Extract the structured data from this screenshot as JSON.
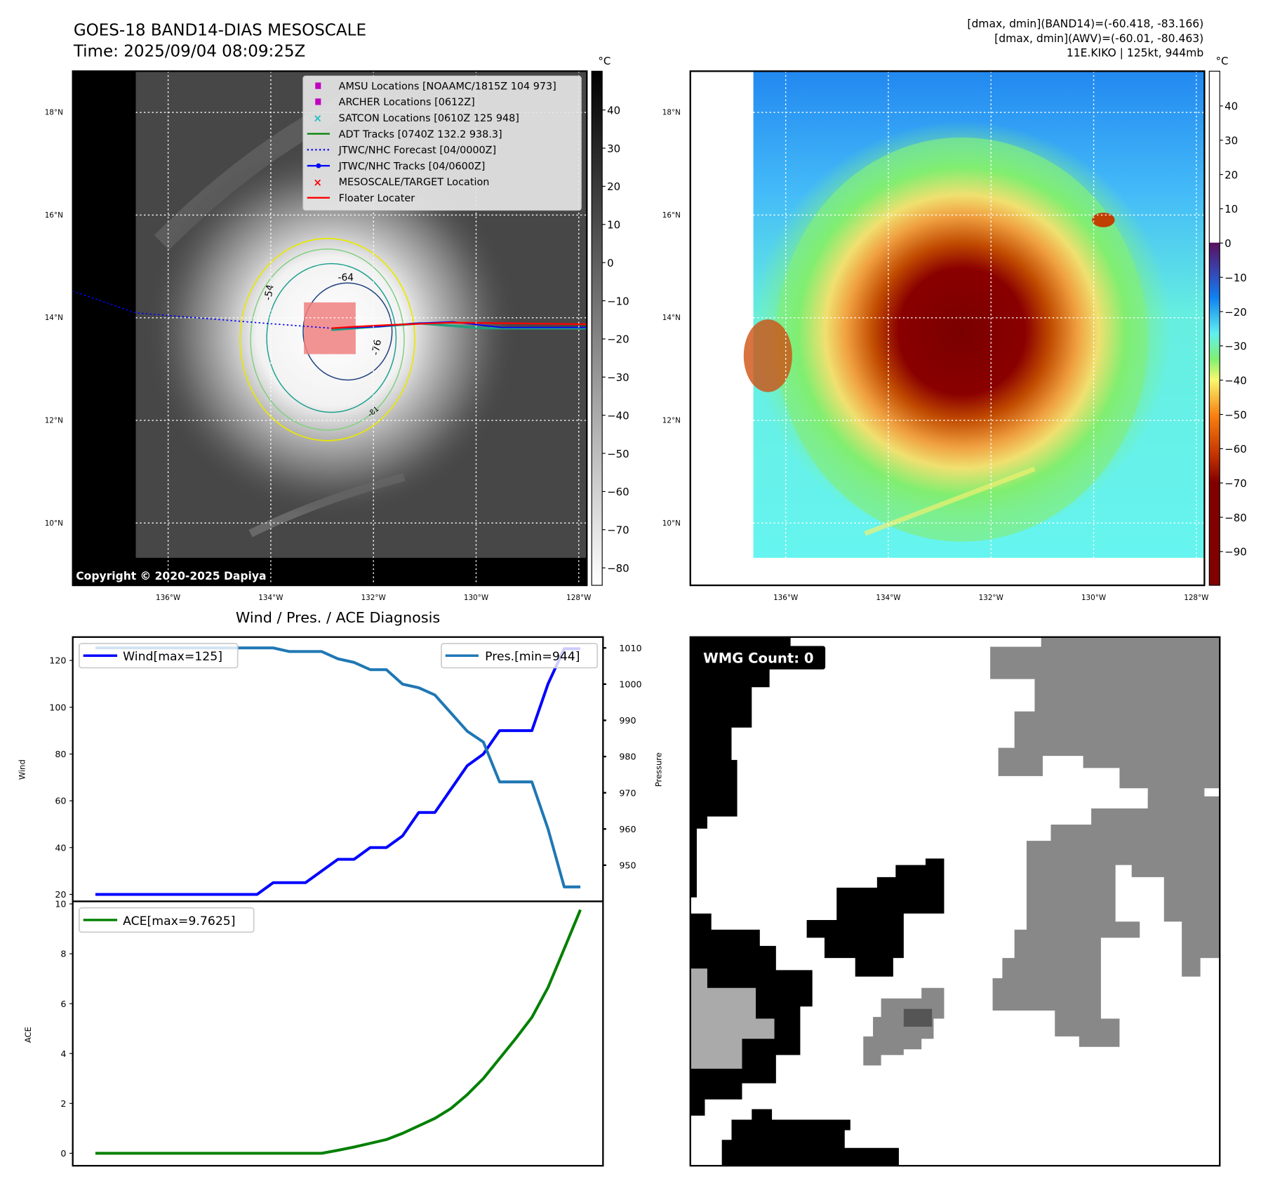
{
  "header": {
    "title": "GOES-18 BAND14-DIAS MESOSCALE",
    "time": "Time: 2025/09/04 08:09:25Z",
    "info_line1": "[dmax, dmin](BAND14)=(-60.418, -83.166)",
    "info_line2": "[dmax, dmin](AWV)=(-60.01, -80.463)",
    "info_line3": "11E.KIKO | 125kt, 944mb"
  },
  "map": {
    "lat_labels": [
      "18°N",
      "16°N",
      "14°N",
      "12°N",
      "10°N"
    ],
    "lon_labels": [
      "136°W",
      "134°W",
      "132°W",
      "130°W",
      "128°W"
    ],
    "copyright": "Copyright © 2020-2025 Dapiya",
    "contour_labels": [
      "-64",
      "-54",
      "-76",
      "-81"
    ],
    "legend": [
      {
        "label": "AMSU Locations [NOAAMC/1815Z 104 973]",
        "marker": "square",
        "color": "#c000c0"
      },
      {
        "label": "ARCHER Locations [0612Z]",
        "marker": "square",
        "color": "#c000c0"
      },
      {
        "label": "SATCON Locations [0610Z 125 948]",
        "marker": "x",
        "color": "#20c0c0"
      },
      {
        "label": "ADT Tracks [0740Z 132.2 938.3]",
        "marker": "line",
        "color": "#008000"
      },
      {
        "label": "JTWC/NHC Forecast [04/0000Z]",
        "marker": "dotted",
        "color": "#0000ff"
      },
      {
        "label": "JTWC/NHC Tracks [04/0600Z]",
        "marker": "line-dot",
        "color": "#0000ff"
      },
      {
        "label": "MESOSCALE/TARGET Location",
        "marker": "x",
        "color": "#ff0000"
      },
      {
        "label": "Floater Locater",
        "marker": "line",
        "color": "#ff0000"
      }
    ]
  },
  "colorbar_gray": {
    "unit": "°C",
    "ticks": [
      "40",
      "30",
      "20",
      "10",
      "0",
      "−10",
      "−20",
      "−30",
      "−40",
      "−50",
      "−60",
      "−70",
      "−80"
    ]
  },
  "colorbar_color": {
    "unit": "°C",
    "ticks": [
      "40",
      "30",
      "20",
      "10",
      "0",
      "−10",
      "−20",
      "−30",
      "−40",
      "−50",
      "−60",
      "−70",
      "−80",
      "−90"
    ]
  },
  "wmg": {
    "label": "WMG Count: 0"
  },
  "chart_data": {
    "type": "line",
    "title": "Wind / Pres. / ACE Diagnosis",
    "x": [
      0,
      1,
      2,
      3,
      4,
      5,
      6,
      7,
      8,
      9,
      10,
      11,
      12,
      13,
      14,
      15,
      16,
      17,
      18,
      19,
      20,
      21,
      22,
      23,
      24,
      25,
      26,
      27,
      28,
      29,
      30
    ],
    "series": [
      {
        "name": "Wind[max=125]",
        "axis": "Wind",
        "color": "#0000ff",
        "values": [
          20,
          20,
          20,
          20,
          20,
          20,
          20,
          20,
          20,
          20,
          20,
          25,
          25,
          25,
          30,
          35,
          35,
          40,
          40,
          45,
          55,
          55,
          65,
          75,
          80,
          90,
          90,
          90,
          110,
          125,
          125
        ]
      },
      {
        "name": "Pres.[min=944]",
        "axis": "Pressure",
        "color": "#1f77b4",
        "values": [
          1010,
          1010,
          1010,
          1010,
          1010,
          1010,
          1010,
          1010,
          1010,
          1010,
          1010,
          1010,
          1009,
          1009,
          1009,
          1007,
          1006,
          1004,
          1004,
          1000,
          999,
          997,
          992,
          987,
          984,
          973,
          973,
          973,
          960,
          944,
          944
        ]
      },
      {
        "name": "ACE[max=9.7625]",
        "axis": "ACE",
        "color": "#008000",
        "values": [
          0,
          0,
          0,
          0,
          0,
          0,
          0,
          0,
          0,
          0,
          0,
          0,
          0,
          0,
          0,
          0.12,
          0.25,
          0.4,
          0.55,
          0.8,
          1.1,
          1.4,
          1.8,
          2.35,
          3.0,
          3.8,
          4.6,
          5.45,
          6.65,
          8.2,
          9.7625
        ]
      }
    ],
    "wind_axis": {
      "label": "Wind",
      "ylim": [
        17,
        130
      ],
      "ticks": [
        "20",
        "40",
        "60",
        "80",
        "100",
        "120"
      ]
    },
    "pressure_axis": {
      "label": "Pressure",
      "ylim": [
        940,
        1013
      ],
      "ticks": [
        "950",
        "960",
        "970",
        "980",
        "990",
        "1000",
        "1010"
      ]
    },
    "ace_axis": {
      "label": "ACE",
      "ylim": [
        -0.5,
        10.1
      ],
      "ticks": [
        "0",
        "2",
        "4",
        "6",
        "8",
        "10"
      ]
    }
  }
}
